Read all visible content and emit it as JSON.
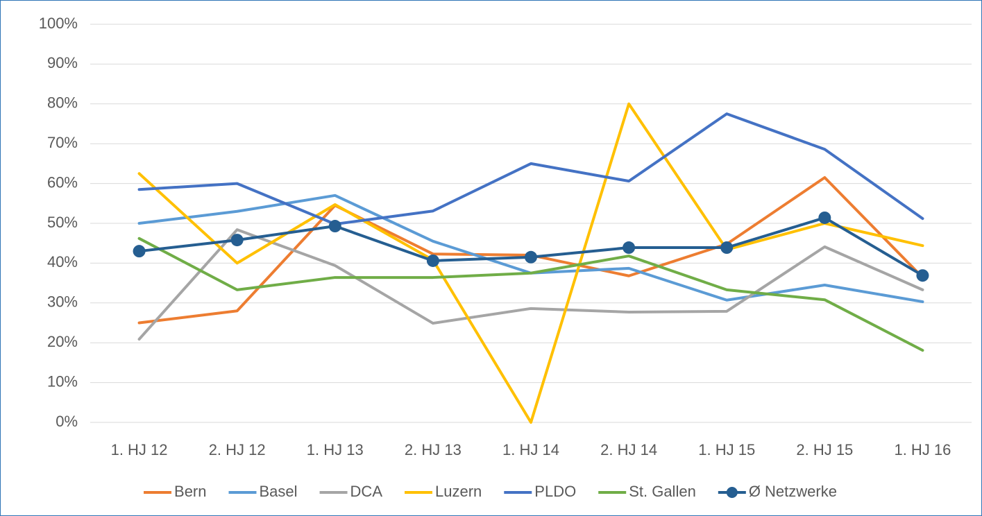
{
  "chart_data": {
    "type": "line",
    "categories": [
      "1. HJ 12",
      "2. HJ 12",
      "1. HJ 13",
      "2. HJ 13",
      "1. HJ 14",
      "2. HJ 14",
      "1. HJ 15",
      "2. HJ 15",
      "1. HJ 16"
    ],
    "series": [
      {
        "name": "Bern",
        "color": "#ed7d31",
        "values": [
          25,
          28,
          54.5,
          42.3,
          42,
          36.8,
          44.8,
          61.5,
          36.4
        ]
      },
      {
        "name": "Basel",
        "color": "#5b9bd5",
        "values": [
          50,
          53,
          57,
          45.5,
          37.5,
          38.7,
          30.7,
          34.5,
          30.3
        ]
      },
      {
        "name": "DCA",
        "color": "#a5a5a5",
        "values": [
          20.9,
          48.4,
          39.4,
          24.9,
          28.6,
          27.7,
          27.9,
          44.1,
          33.3
        ]
      },
      {
        "name": "Luzern",
        "color": "#ffc000",
        "values": [
          62.5,
          40,
          54.7,
          40.8,
          0,
          80,
          43.4,
          50,
          44.4
        ]
      },
      {
        "name": "PLDO",
        "color": "#4472c4",
        "values": [
          58.5,
          60,
          49.8,
          53.1,
          65,
          60.6,
          77.5,
          68.6,
          51.2
        ]
      },
      {
        "name": "St. Gallen",
        "color": "#70ad47",
        "values": [
          46.2,
          33.3,
          36.4,
          36.4,
          37.5,
          41.8,
          33.3,
          30.8,
          18.1
        ]
      },
      {
        "name": "Ø Netzwerke",
        "color": "#255e91",
        "markers": true,
        "values": [
          43,
          45.8,
          49.3,
          40.6,
          41.5,
          43.9,
          43.9,
          51.4,
          36.9
        ]
      }
    ],
    "ylim": [
      0,
      100
    ],
    "yticks": [
      {
        "value": 0,
        "label": "0%"
      },
      {
        "value": 10,
        "label": "10%"
      },
      {
        "value": 20,
        "label": "20%"
      },
      {
        "value": 30,
        "label": "30%"
      },
      {
        "value": 40,
        "label": "40%"
      },
      {
        "value": 50,
        "label": "50%"
      },
      {
        "value": 60,
        "label": "60%"
      },
      {
        "value": 70,
        "label": "70%"
      },
      {
        "value": 80,
        "label": "80%"
      },
      {
        "value": 90,
        "label": "90%"
      },
      {
        "value": 100,
        "label": "100%"
      }
    ],
    "grid": true,
    "legend": "bottom"
  }
}
